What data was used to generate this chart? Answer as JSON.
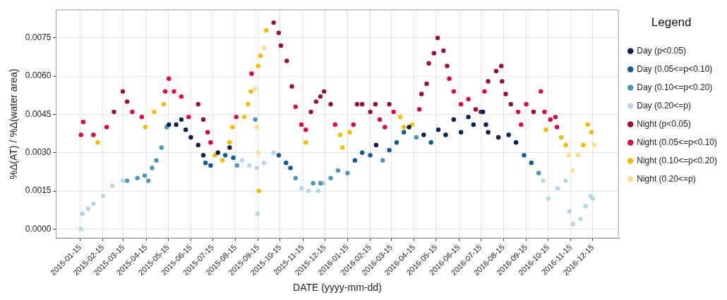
{
  "chart_data": {
    "type": "scatter",
    "xlabel": "DATE (yyyy-mm-dd)",
    "ylabel": "%Δ(AT) / %Δ(water area)",
    "legend_title": "Legend",
    "legend": "right",
    "grid": true,
    "marker": "circle",
    "xlim": [
      "2014-12-13",
      "2017-01-19"
    ],
    "xticks": [
      "2015-01-15",
      "2015-02-15",
      "2015-03-15",
      "2015-04-15",
      "2015-05-15",
      "2015-06-15",
      "2015-07-15",
      "2015-08-15",
      "2015-09-15",
      "2015-10-15",
      "2015-11-15",
      "2015-12-15",
      "2016-01-15",
      "2016-02-15",
      "2016-03-15",
      "2016-04-15",
      "2016-05-15",
      "2016-06-15",
      "2016-07-15",
      "2016-08-15",
      "2016-09-15",
      "2016-10-15",
      "2016-11-15",
      "2016-12-15"
    ],
    "ylim": [
      -0.00035,
      0.0086
    ],
    "yticks": [
      {
        "value": 0,
        "label": "0.0000"
      },
      {
        "value": 0.0015,
        "label": "0.0015"
      },
      {
        "value": 0.003,
        "label": "0.0030"
      },
      {
        "value": 0.0045,
        "label": "0.0045"
      },
      {
        "value": 0.006,
        "label": "0.0060"
      },
      {
        "value": 0.0075,
        "label": "0.0075"
      }
    ],
    "series": [
      {
        "name": "Day (p<0.05)",
        "color": "#0b2150",
        "x": [
          "2015-05-16",
          "2015-05-26",
          "2015-06-02",
          "2015-06-08",
          "2015-06-15",
          "2015-06-25",
          "2015-07-02",
          "2015-07-22",
          "2015-08-07",
          "2016-02-23",
          "2016-04-08",
          "2016-04-28",
          "2016-05-18",
          "2016-05-28",
          "2016-06-08",
          "2016-06-18",
          "2016-06-28",
          "2016-07-05",
          "2016-07-18",
          "2016-07-22",
          "2016-07-25",
          "2016-08-08",
          "2016-08-22",
          "2016-09-01"
        ],
        "values": [
          0.0041,
          0.0041,
          0.0043,
          0.0039,
          0.0036,
          0.0033,
          0.0029,
          0.003,
          0.0032,
          0.0033,
          0.004,
          0.0037,
          0.0039,
          0.0037,
          0.0043,
          0.0038,
          0.0044,
          0.0041,
          0.0046,
          0.0041,
          0.0038,
          0.0036,
          0.0037,
          0.0034
        ]
      },
      {
        "name": "Day (0.05<=p<0.10)",
        "color": "#0d5d92",
        "x": [
          "2015-07-05",
          "2015-07-12",
          "2015-08-01",
          "2015-08-12",
          "2015-10-13",
          "2015-10-23",
          "2015-10-29",
          "2016-01-25",
          "2016-02-04",
          "2016-02-15",
          "2016-03-12",
          "2016-03-22",
          "2016-04-01",
          "2016-05-08",
          "2016-09-12",
          "2016-09-22"
        ],
        "values": [
          0.0026,
          0.0025,
          0.0029,
          0.0028,
          0.0029,
          0.0026,
          0.0024,
          0.0027,
          0.003,
          0.0029,
          0.0031,
          0.0034,
          0.0038,
          0.0034,
          0.0029,
          0.0026
        ]
      },
      {
        "name": "Day (0.10<=p<0.20)",
        "color": "#4d97b8",
        "x": [
          "2015-03-20",
          "2015-04-03",
          "2015-04-13",
          "2015-04-18",
          "2015-04-23",
          "2015-04-29",
          "2015-05-06",
          "2015-05-13",
          "2015-08-17",
          "2015-09-11",
          "2015-11-05",
          "2015-11-29",
          "2015-12-09",
          "2015-12-23",
          "2016-01-02",
          "2016-01-15",
          "2016-03-03",
          "2016-04-18",
          "2016-10-02"
        ],
        "values": [
          0.0019,
          0.002,
          0.0021,
          0.0019,
          0.0024,
          0.0027,
          0.0032,
          0.004,
          0.0025,
          0.0043,
          0.002,
          0.0018,
          0.0018,
          0.002,
          0.0023,
          0.0022,
          0.0027,
          0.0036,
          0.0022
        ]
      },
      {
        "name": "Day (0.20<=p)",
        "color": "#b8d7e8",
        "x": [
          "2015-01-16",
          "2015-01-18",
          "2015-01-26",
          "2015-02-02",
          "2015-02-15",
          "2015-02-28",
          "2015-03-14",
          "2015-08-24",
          "2015-09-03",
          "2015-09-13",
          "2015-09-14",
          "2015-09-23",
          "2015-10-06",
          "2015-11-13",
          "2015-11-23",
          "2015-12-06",
          "2015-12-13",
          "2016-10-08",
          "2016-10-15",
          "2016-10-28",
          "2016-11-08",
          "2016-11-13",
          "2016-11-18",
          "2016-11-28",
          "2016-12-05",
          "2016-12-12",
          "2016-12-15"
        ],
        "values": [
          0,
          0.0006,
          0.0008,
          0.001,
          0.0013,
          0.0017,
          0.0019,
          0.0027,
          0.0025,
          0.0024,
          0.0006,
          0.0026,
          0.003,
          0.0016,
          0.0015,
          0.0015,
          0.0018,
          0.0019,
          0.0012,
          0.0016,
          0.0019,
          0.0007,
          0.0002,
          0.0004,
          0.0009,
          0.0013,
          0.0012
        ]
      },
      {
        "name": "Night (p<0.05)",
        "color": "#9c0c3e",
        "x": [
          "2015-03-02",
          "2015-03-14",
          "2015-03-20",
          "2015-06-25",
          "2015-07-02",
          "2015-10-06",
          "2015-10-13",
          "2015-10-16",
          "2015-10-24",
          "2015-10-31",
          "2015-11-26",
          "2015-12-03",
          "2015-12-09",
          "2015-12-14",
          "2015-12-23",
          "2016-01-28",
          "2016-02-04",
          "2016-02-15",
          "2016-02-22",
          "2016-03-12",
          "2016-04-25",
          "2016-05-02",
          "2016-05-05",
          "2016-05-12",
          "2016-05-17",
          "2016-05-25",
          "2016-05-30",
          "2016-07-08",
          "2016-07-15",
          "2016-07-25",
          "2016-08-05",
          "2016-08-12",
          "2016-08-13",
          "2016-08-18",
          "2016-08-25",
          "2016-09-25"
        ],
        "values": [
          0.0046,
          0.0054,
          0.005,
          0.0049,
          0.0043,
          0.0081,
          0.0077,
          0.0072,
          0.0066,
          0.0056,
          0.0046,
          0.005,
          0.0052,
          0.0054,
          0.0049,
          0.0049,
          0.0049,
          0.0046,
          0.0049,
          0.0049,
          0.0053,
          0.0057,
          0.0065,
          0.0069,
          0.0075,
          0.007,
          0.0064,
          0.0047,
          0.0046,
          0.0058,
          0.0062,
          0.0064,
          0.0058,
          0.0053,
          0.0049,
          0.0046
        ]
      },
      {
        "name": "Night (0.05<=p<0.10)",
        "color": "#e2063f",
        "x": [
          "2015-01-16",
          "2015-01-19",
          "2015-02-02",
          "2015-02-20",
          "2015-03-27",
          "2015-04-09",
          "2015-05-11",
          "2015-05-16",
          "2015-05-23",
          "2015-06-02",
          "2015-06-12",
          "2015-07-08",
          "2015-07-12",
          "2015-08-16",
          "2015-09-06",
          "2015-11-05",
          "2015-11-13",
          "2015-11-19",
          "2015-12-29",
          "2016-01-23",
          "2016-02-28",
          "2016-03-06",
          "2016-03-18",
          "2016-04-22",
          "2016-06-02",
          "2016-06-08",
          "2016-06-18",
          "2016-06-28",
          "2016-07-20",
          "2016-09-04",
          "2016-09-08",
          "2016-09-15",
          "2016-10-05",
          "2016-10-10",
          "2016-10-18",
          "2016-10-25",
          "2016-10-27"
        ],
        "values": [
          0.0037,
          0.0042,
          0.0037,
          0.004,
          0.0046,
          0.0044,
          0.0054,
          0.0059,
          0.0054,
          0.0052,
          0.0044,
          0.0038,
          0.0034,
          0.0044,
          0.0061,
          0.0048,
          0.0041,
          0.0039,
          0.0041,
          0.0041,
          0.0043,
          0.004,
          0.0046,
          0.0047,
          0.0059,
          0.0054,
          0.0049,
          0.0051,
          0.0054,
          0.0046,
          0.0041,
          0.0049,
          0.0054,
          0.0046,
          0.0043,
          0.0044,
          0.004
        ]
      },
      {
        "name": "Night (0.10<=p<0.20)",
        "color": "#fbbc00",
        "x": [
          "2015-02-08",
          "2015-04-14",
          "2015-04-26",
          "2015-05-09",
          "2015-07-18",
          "2015-07-28",
          "2015-08-07",
          "2015-08-11",
          "2015-08-27",
          "2015-09-01",
          "2015-09-05",
          "2015-09-15",
          "2015-09-16",
          "2015-09-18",
          "2015-09-26",
          "2015-11-19",
          "2016-01-05",
          "2016-01-08",
          "2016-01-18",
          "2016-03-27",
          "2016-04-01",
          "2016-04-12",
          "2016-10-12",
          "2016-11-02",
          "2016-11-08",
          "2016-12-02",
          "2016-12-08",
          "2016-12-13"
        ],
        "values": [
          0.0034,
          0.004,
          0.0046,
          0.0049,
          0.0029,
          0.0027,
          0.0034,
          0.004,
          0.0044,
          0.0049,
          0.0054,
          0.0064,
          0.0015,
          0.0068,
          0.0078,
          0.0034,
          0.0037,
          0.0032,
          0.0038,
          0.0044,
          0.004,
          0.0041,
          0.0039,
          0.0036,
          0.0033,
          0.0033,
          0.0041,
          0.0038
        ]
      },
      {
        "name": "Night (0.20<=p)",
        "color": "#fddf8c",
        "x": [
          "2015-09-11",
          "2015-09-13",
          "2015-09-15",
          "2015-09-23",
          "2016-11-12",
          "2016-11-17",
          "2016-11-25",
          "2016-12-17"
        ],
        "values": [
          0.0055,
          0.004,
          0.003,
          0.0071,
          0.0029,
          0.0023,
          0.0029,
          0.0033
        ]
      }
    ]
  }
}
